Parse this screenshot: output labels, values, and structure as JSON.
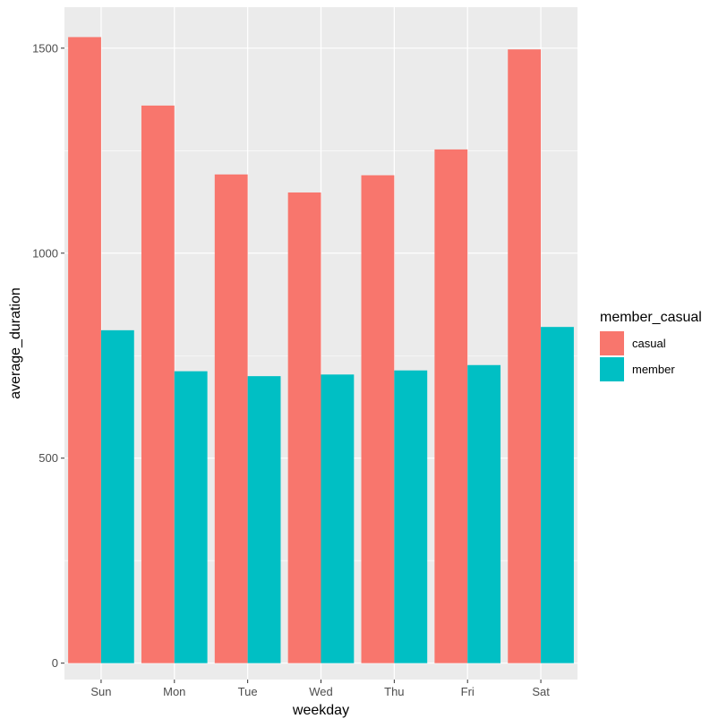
{
  "chart_data": {
    "type": "bar",
    "categories": [
      "Sun",
      "Mon",
      "Tue",
      "Wed",
      "Thu",
      "Fri",
      "Sat"
    ],
    "series": [
      {
        "name": "casual",
        "values": [
          1527,
          1360,
          1192,
          1148,
          1190,
          1253,
          1497
        ],
        "color": "#F8766D"
      },
      {
        "name": "member",
        "values": [
          812,
          712,
          700,
          704,
          714,
          727,
          820
        ],
        "color": "#00BFC4"
      }
    ],
    "title": "",
    "xlabel": "weekday",
    "ylabel": "average_duration",
    "ylim": [
      -40,
      1600
    ],
    "yticks": [
      0,
      500,
      1000,
      1500
    ],
    "grid": true,
    "legend": {
      "title": "member_casual",
      "position": "right"
    },
    "panel_background": "#EBEBEB",
    "grid_color": "#FFFFFF"
  }
}
